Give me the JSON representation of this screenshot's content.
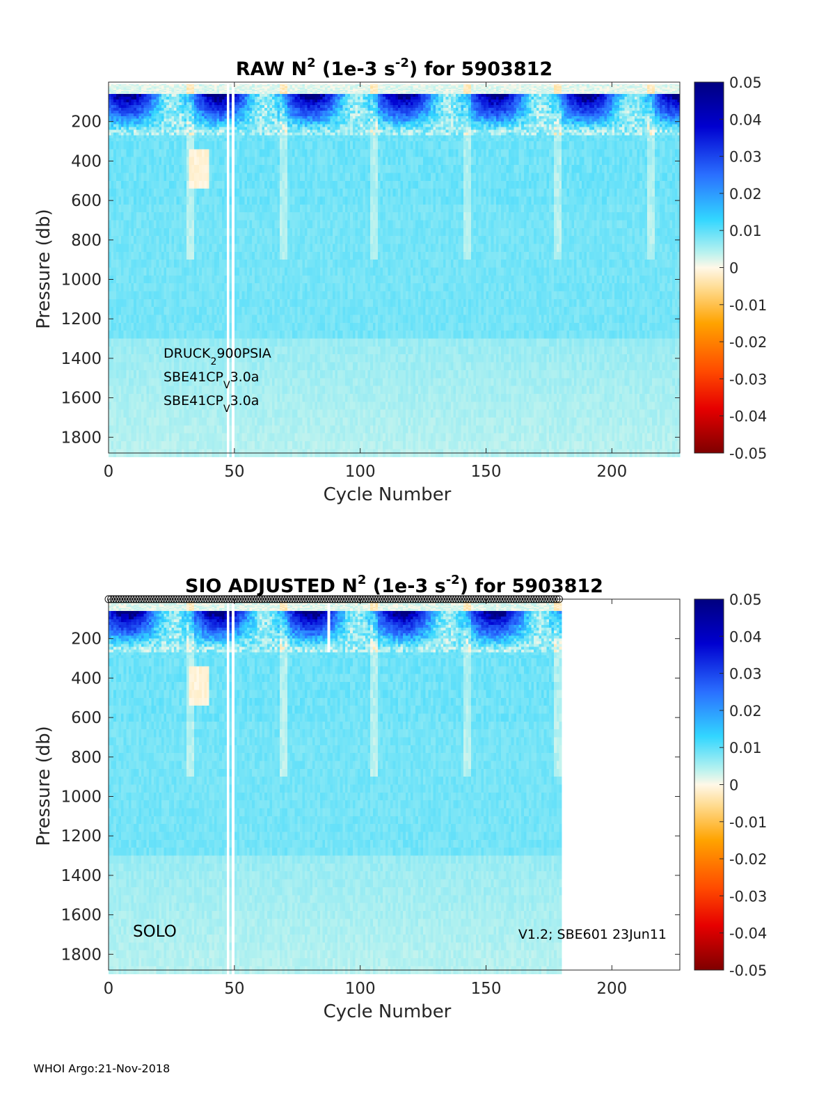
{
  "chart_data": [
    {
      "type": "heatmap",
      "title_prefix": "RAW N",
      "title_sup1": "2",
      "title_mid": " (1e-3 s",
      "title_sup2": "-2",
      "title_suffix": ") for 5903812",
      "xlabel": "Cycle Number",
      "ylabel": "Pressure (db)",
      "xlim": [
        0,
        227
      ],
      "ylim": [
        1880,
        0
      ],
      "xticks": [
        0,
        50,
        100,
        150,
        200
      ],
      "yticks": [
        200,
        400,
        600,
        800,
        1000,
        1200,
        1400,
        1600,
        1800
      ],
      "data_max_cycle": 227,
      "colorbar": {
        "min": -0.05,
        "max": 0.05,
        "ticks": [
          "0.05",
          "0.04",
          "0.03",
          "0.02",
          "0.01",
          "0",
          "-0.01",
          "-0.02",
          "-0.03",
          "-0.04",
          "-0.05"
        ],
        "colormap": "jet (reversed)"
      },
      "annotations": [
        {
          "main": "DRUCK",
          "sub": "2",
          "rest": "900PSIA"
        },
        {
          "main": "SBE41CP",
          "sub": "V",
          "rest": "3.0a"
        },
        {
          "main": "SBE41CP",
          "sub": "V",
          "rest": "3.0a"
        }
      ],
      "gap_cycles": [
        48,
        50
      ],
      "description_values": {
        "surface_max": 0.05,
        "deep_typical": 0.008
      }
    },
    {
      "type": "heatmap",
      "title_prefix": "SIO  ADJUSTED N",
      "title_sup1": "2",
      "title_mid": " (1e-3 s",
      "title_sup2": "-2",
      "title_suffix": ") for 5903812",
      "xlabel": "Cycle Number",
      "ylabel": "Pressure (db)",
      "xlim": [
        0,
        227
      ],
      "ylim": [
        1880,
        0
      ],
      "xticks": [
        0,
        50,
        100,
        150,
        200
      ],
      "yticks": [
        200,
        400,
        600,
        800,
        1000,
        1200,
        1400,
        1600,
        1800
      ],
      "data_max_cycle": 180,
      "colorbar": {
        "min": -0.05,
        "max": 0.05,
        "ticks": [
          "0.05",
          "0.04",
          "0.03",
          "0.02",
          "0.01",
          "0",
          "-0.01",
          "-0.02",
          "-0.03",
          "-0.04",
          "-0.05"
        ],
        "colormap": "jet (reversed)"
      },
      "left_label": "SOLO",
      "right_label": "V1.2; SBE601 23Jun11",
      "gap_cycles": [
        48,
        50,
        88
      ],
      "top_markers": {
        "from": 1,
        "to": 180
      }
    }
  ],
  "footer": "WHOI Argo:21-Nov-2018"
}
